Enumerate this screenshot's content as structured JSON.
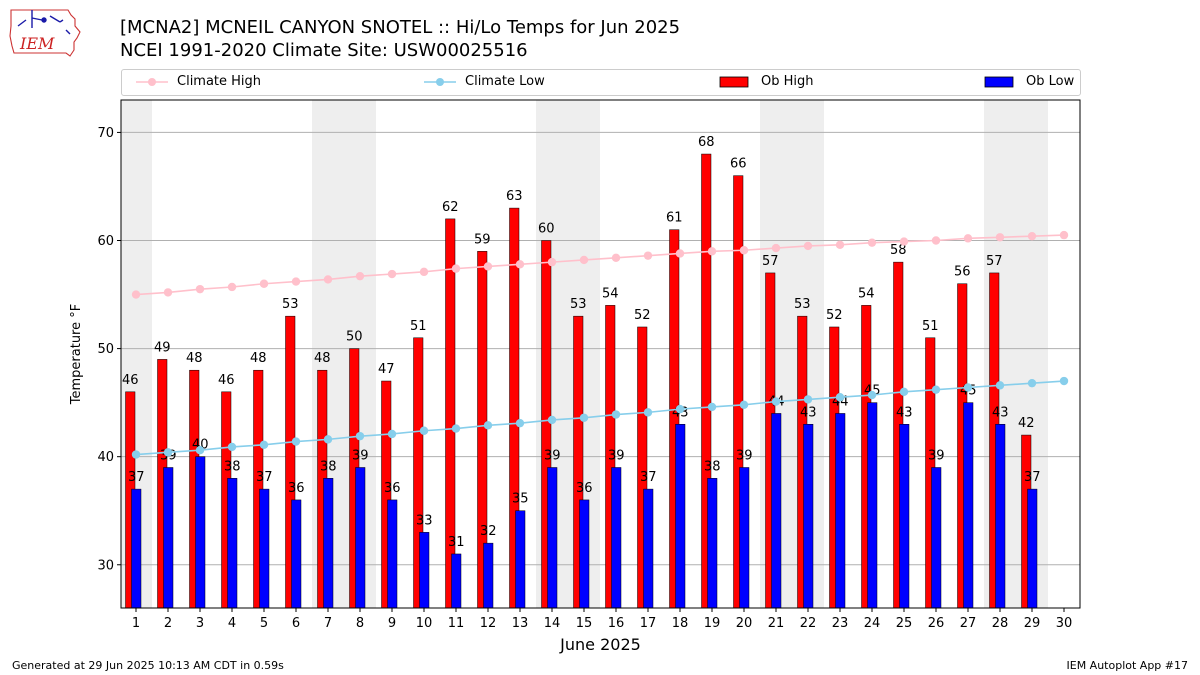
{
  "header": {
    "title_line1": "[MCNA2] MCNEIL CANYON SNOTEL :: Hi/Lo Temps for Jun 2025",
    "title_line2": "NCEI 1991-2020 Climate Site: USW00025516"
  },
  "logo": {
    "text": "IEM"
  },
  "legend": {
    "climate_high": "Climate High",
    "climate_low": "Climate Low",
    "ob_high": "Ob High",
    "ob_low": "Ob Low"
  },
  "colors": {
    "ob_high": "#ff0000",
    "ob_low": "#0000ff",
    "climate_high": "#ffc0cb",
    "climate_low": "#87ceeb",
    "weekend_band": "#eeeeee",
    "grid": "#b0b0b0"
  },
  "chart_data": {
    "type": "bar",
    "xlabel": "June 2025",
    "ylabel": "Temperature °F",
    "ylim": [
      26,
      73
    ],
    "yticks": [
      30,
      40,
      50,
      60,
      70
    ],
    "grid": "horizontal",
    "legend_position": "top",
    "categories": [
      1,
      2,
      3,
      4,
      5,
      6,
      7,
      8,
      9,
      10,
      11,
      12,
      13,
      14,
      15,
      16,
      17,
      18,
      19,
      20,
      21,
      22,
      23,
      24,
      25,
      26,
      27,
      28,
      29,
      30
    ],
    "shaded_days": [
      1,
      7,
      8,
      14,
      15,
      21,
      22,
      28,
      29
    ],
    "series": [
      {
        "name": "Ob High",
        "type": "bar",
        "values": [
          46,
          49,
          48,
          46,
          48,
          53,
          48,
          50,
          47,
          51,
          62,
          59,
          63,
          60,
          53,
          54,
          52,
          61,
          68,
          66,
          57,
          53,
          52,
          54,
          58,
          51,
          56,
          57,
          42,
          null
        ]
      },
      {
        "name": "Ob Low",
        "type": "bar",
        "values": [
          37,
          39,
          40,
          38,
          37,
          36,
          38,
          39,
          36,
          33,
          31,
          32,
          35,
          39,
          36,
          39,
          37,
          43,
          38,
          39,
          44,
          43,
          44,
          45,
          43,
          39,
          45,
          43,
          37,
          null
        ]
      },
      {
        "name": "Climate High",
        "type": "line",
        "values": [
          55.0,
          55.2,
          55.5,
          55.7,
          56.0,
          56.2,
          56.4,
          56.7,
          56.9,
          57.1,
          57.4,
          57.6,
          57.8,
          58.0,
          58.2,
          58.4,
          58.6,
          58.8,
          59.0,
          59.1,
          59.3,
          59.5,
          59.6,
          59.8,
          59.9,
          60.0,
          60.2,
          60.3,
          60.4,
          60.5
        ]
      },
      {
        "name": "Climate Low",
        "type": "line",
        "values": [
          40.2,
          40.4,
          40.6,
          40.9,
          41.1,
          41.4,
          41.6,
          41.9,
          42.1,
          42.4,
          42.6,
          42.9,
          43.1,
          43.4,
          43.6,
          43.9,
          44.1,
          44.4,
          44.6,
          44.8,
          45.1,
          45.3,
          45.5,
          45.7,
          46.0,
          46.2,
          46.4,
          46.6,
          46.8,
          47.0
        ]
      }
    ]
  },
  "footer": {
    "generated": "Generated at 29 Jun 2025 10:13 AM CDT in 0.59s",
    "app": "IEM Autoplot App #17"
  }
}
